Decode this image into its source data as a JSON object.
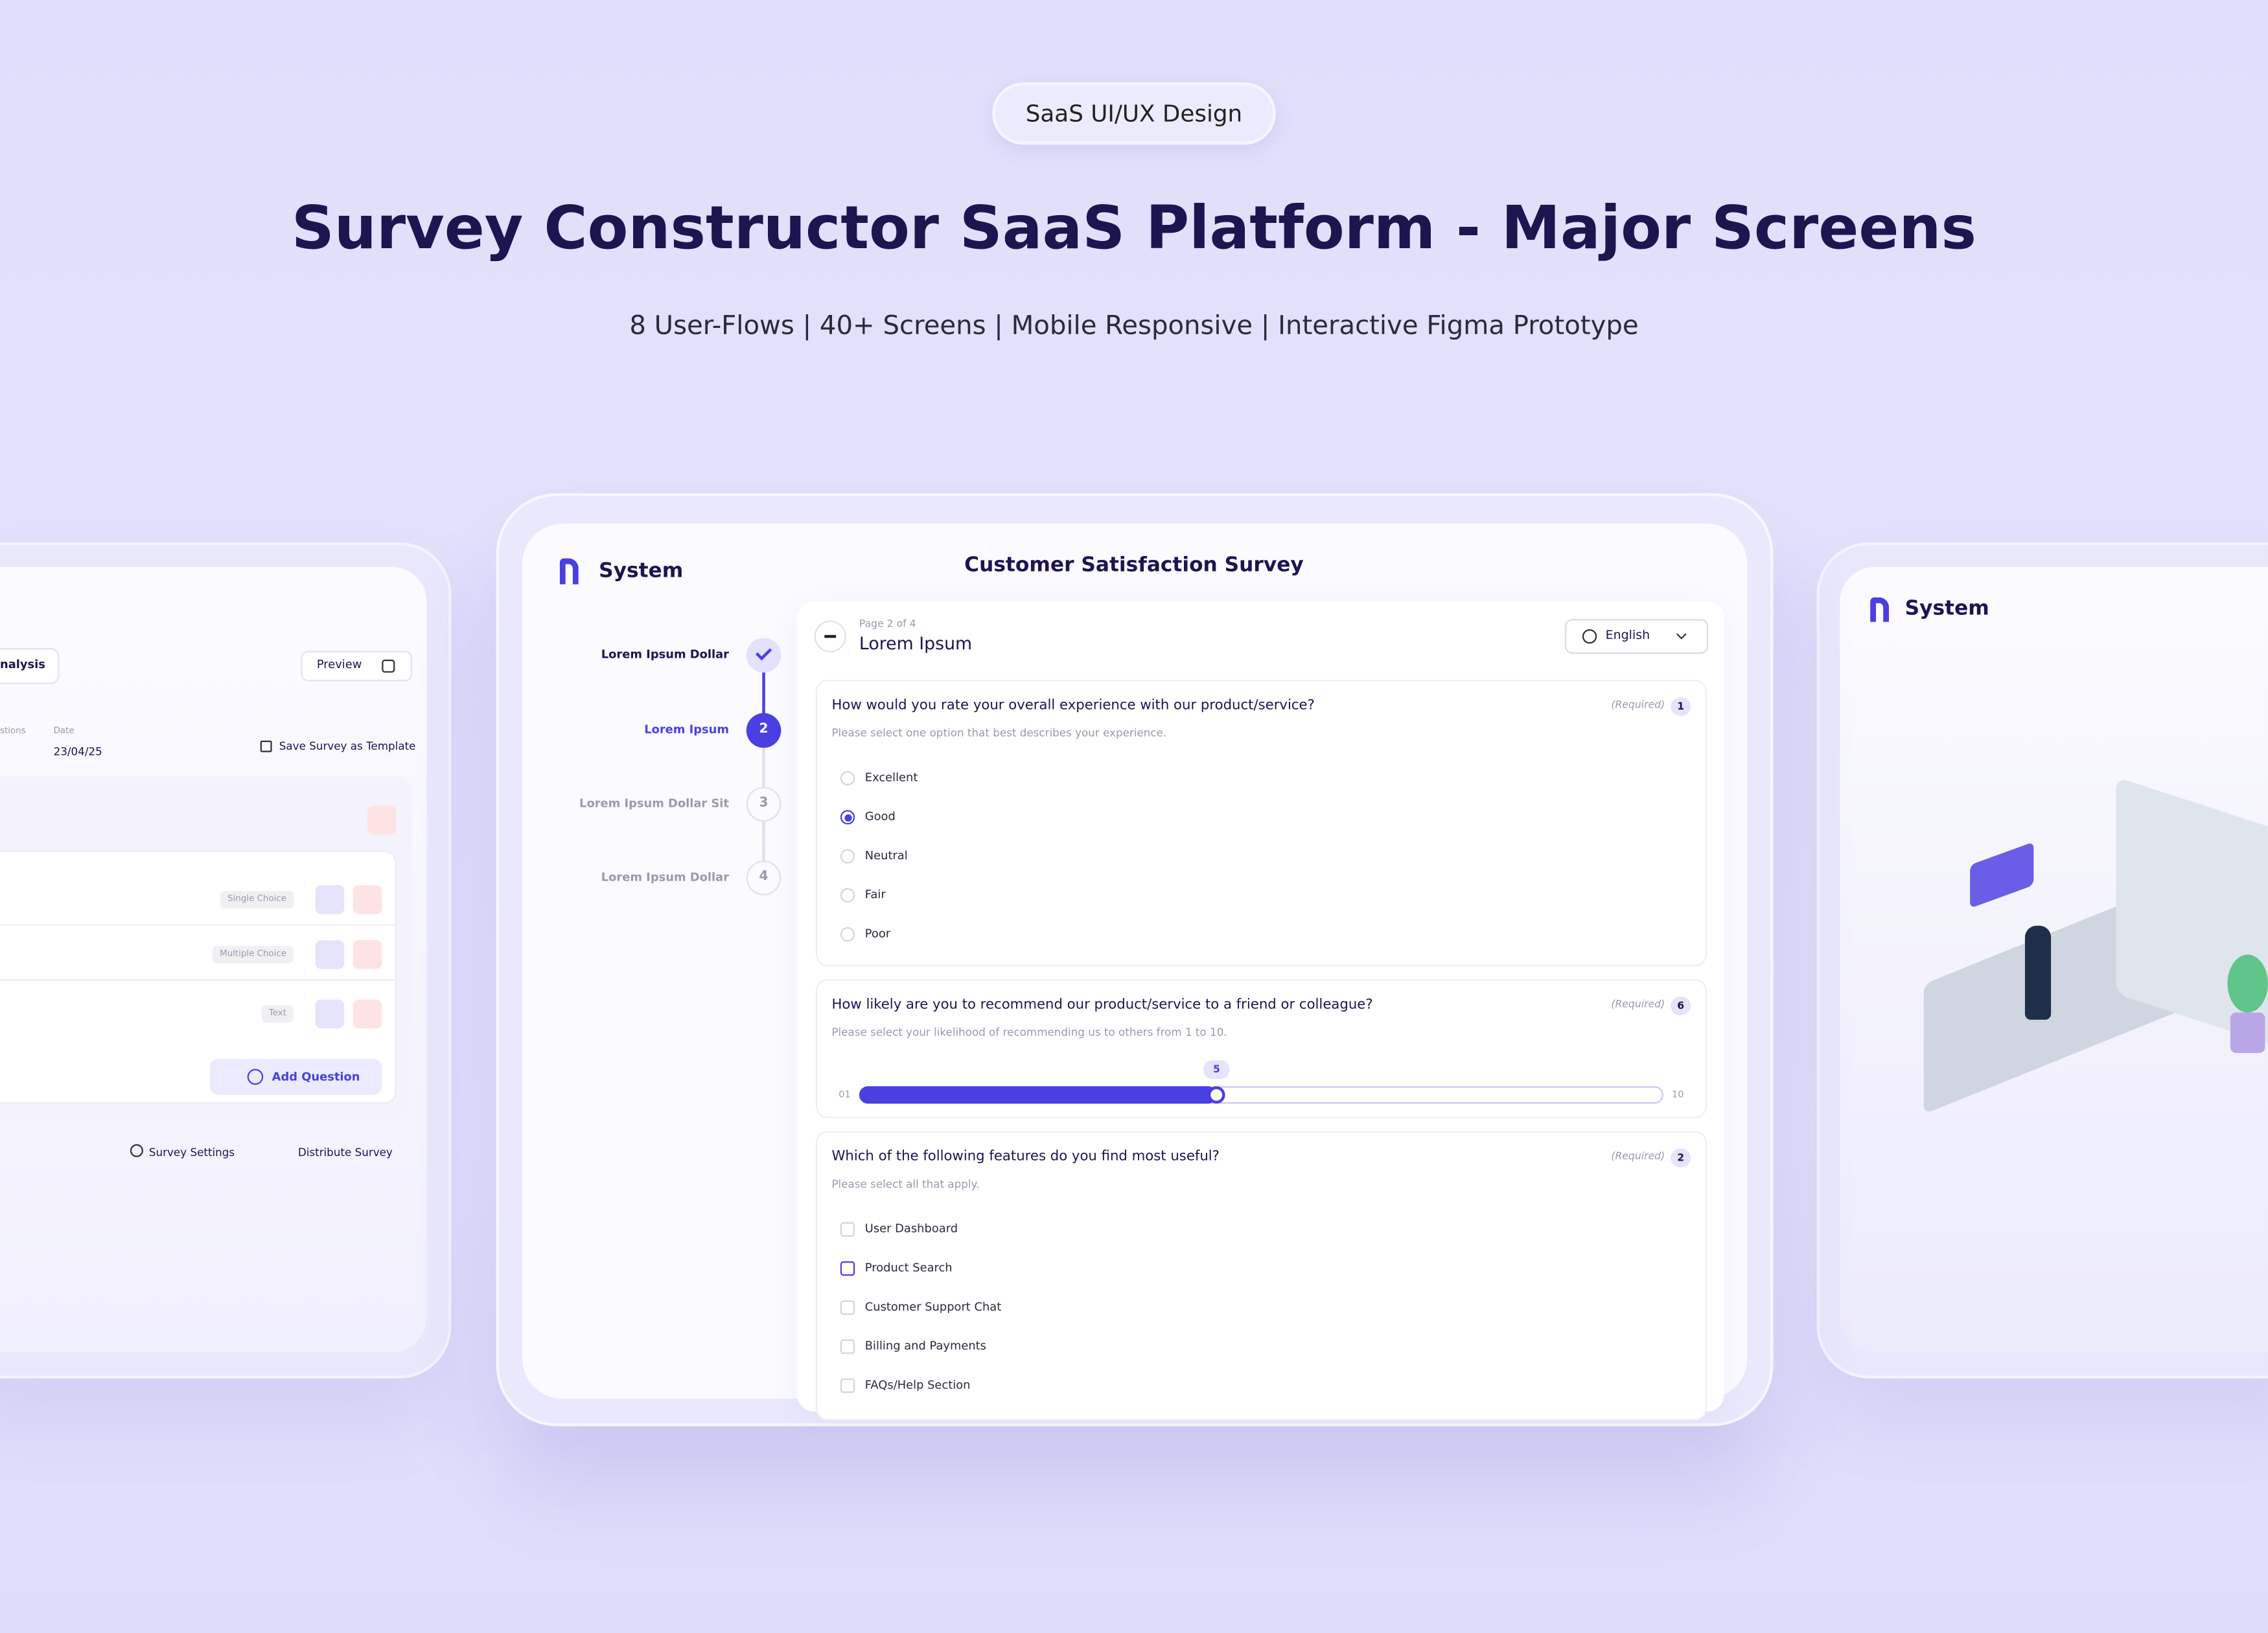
{
  "header": {
    "badge": "SaaS UI/UX Design",
    "title": "Survey Constructor SaaS Platform - Major Screens",
    "subtitle": "8 User-Flows | 40+ Screens | Mobile Responsive | Interactive Figma Prototype"
  },
  "left_screen": {
    "tab": "nalysis",
    "preview": "Preview",
    "meta": [
      {
        "label": "stions"
      },
      {
        "label": "Date",
        "value": "23/04/25"
      }
    ],
    "save_template": "Save Survey as Template",
    "question_types": [
      "Single Choice",
      "Multiple Choice",
      "Text"
    ],
    "add_question": "Add Question",
    "footer": [
      "Survey Settings",
      "Distribute Survey"
    ]
  },
  "center_screen": {
    "brand": "System",
    "title": "Customer Satisfaction Survey",
    "steps": [
      {
        "label": "Lorem Ipsum Dollar"
      },
      {
        "label": "Lorem Ipsum",
        "number": 2
      },
      {
        "label": "Lorem Ipsum Dollar Sit",
        "number": 3
      },
      {
        "label": "Lorem Ipsum Dollar",
        "number": 4
      }
    ],
    "page_info": "Page 2 of 4",
    "page_title": "Lorem Ipsum",
    "language": "English",
    "questions": [
      {
        "text": "How would you rate your overall experience with our product/service?",
        "required": "(Required)",
        "number": 1,
        "hint": "Please select one option that best describes your experience.",
        "kind": "radio",
        "options": [
          "Excellent",
          "Good",
          "Neutral",
          "Fair",
          "Poor"
        ],
        "selected": 1
      },
      {
        "text": "How likely are you to recommend our product/service to a friend or colleague?",
        "required": "(Required)",
        "number": 6,
        "hint": "Please select your likelihood of recommending us to others from 1 to 10.",
        "kind": "slider",
        "scale": {
          "min": {
            "value": 1,
            "label": "01"
          },
          "max": 10,
          "value": 5
        }
      },
      {
        "text": "Which of the following features do you find most useful?",
        "required": "(Required)",
        "number": 2,
        "hint": "Please select all that apply.",
        "kind": "checkbox",
        "options": [
          "User Dashboard",
          "Product Search",
          "Customer Support Chat",
          "Billing and Payments",
          "FAQs/Help Section"
        ],
        "selected": 1
      }
    ]
  },
  "right_screen": {
    "brand": "System"
  }
}
